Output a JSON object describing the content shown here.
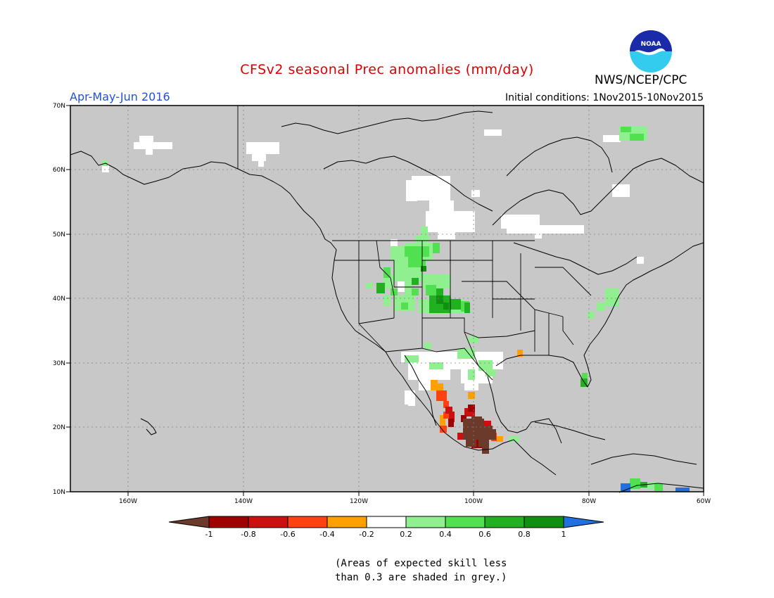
{
  "title": "CFSv2 seasonal Prec anomalies (mm/day)",
  "period": "Apr-May-Jun 2016",
  "initial_conditions": "Initial conditions: 1Nov2015-10Nov2015",
  "agency": "NWS/NCEP/CPC",
  "logo_text": "NOAA",
  "lat_labels": [
    "70N",
    "60N",
    "50N",
    "40N",
    "30N",
    "20N",
    "10N"
  ],
  "lon_labels": [
    "160W",
    "140W",
    "120W",
    "100W",
    "80W",
    "60W"
  ],
  "colorbar": {
    "tick_labels": [
      "-1",
      "-0.8",
      "-0.6",
      "-0.4",
      "-0.2",
      "0.2",
      "0.4",
      "0.6",
      "0.8",
      "1"
    ],
    "colors": [
      "#6b3a2a",
      "#a00000",
      "#cc1010",
      "#ff4010",
      "#ffa000",
      "#ffffff",
      "#90f090",
      "#50e050",
      "#20b020",
      "#109010",
      "#2070e0"
    ]
  },
  "skill_note": {
    "line1": "(Areas of expected skill less",
    "line2": "than 0.3 are shaded in grey.)"
  },
  "colors": {
    "grey": "#c8c8c8",
    "white": "#ffffff",
    "light_green": "#90f090",
    "green": "#50e050",
    "dark_green": "#20b020",
    "darkest_green": "#109010",
    "orange": "#ffa000",
    "red_orange": "#ff4010",
    "red": "#cc1010",
    "dark_red": "#a00000",
    "brown": "#6b3a2a",
    "blue": "#2070e0"
  }
}
